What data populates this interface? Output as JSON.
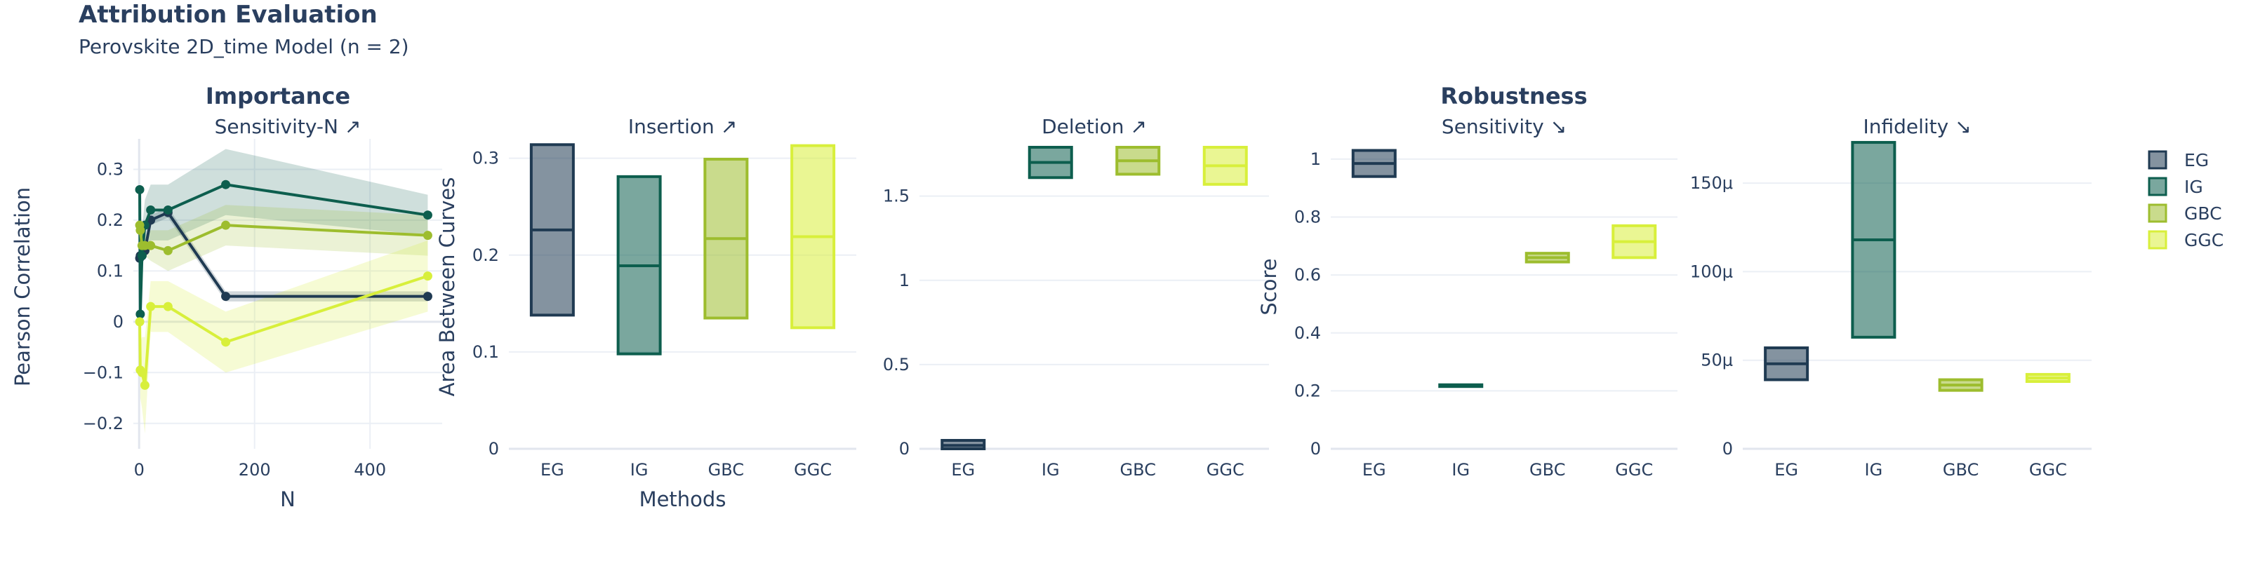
{
  "header": {
    "title": "Attribution Evaluation",
    "subtitle": "Perovskite 2D_time Model (n = 2)"
  },
  "groups": [
    {
      "title": "Importance"
    },
    {
      "title": "Robustness"
    }
  ],
  "legend": [
    "EG",
    "IG",
    "GBC",
    "GGC"
  ],
  "colors": {
    "EG": "#1f3a52",
    "IG": "#0d5e4e",
    "GBC": "#9dbd2e",
    "GGC": "#d8ef3b"
  },
  "chart_data": [
    {
      "type": "line",
      "title": "Sensitivity-N ↗",
      "xlabel": "N",
      "ylabel": "Pearson Correlation",
      "xlim": [
        -10,
        525
      ],
      "ylim": [
        -0.25,
        0.36
      ],
      "xticks": [
        0,
        200,
        400
      ],
      "xtick_labels": [
        "0",
        "200",
        "400"
      ],
      "yticks": [
        -0.2,
        -0.1,
        0,
        0.1,
        0.2,
        0.3
      ],
      "ytick_labels": [
        "−0.2",
        "−0.1",
        "0",
        "0.1",
        "0.2",
        "0.3"
      ],
      "x": [
        1,
        2,
        5,
        10,
        20,
        50,
        150,
        500
      ],
      "series": [
        {
          "name": "EG",
          "values": [
            0.125,
            0.13,
            0.13,
            0.14,
            0.2,
            0.215,
            0.05,
            0.05
          ],
          "lower": [
            0.11,
            0.12,
            0.12,
            0.13,
            0.19,
            0.205,
            0.04,
            0.04
          ],
          "upper": [
            0.14,
            0.14,
            0.14,
            0.15,
            0.21,
            0.225,
            0.06,
            0.06
          ]
        },
        {
          "name": "IG",
          "values": [
            0.26,
            0.015,
            0.13,
            0.19,
            0.22,
            0.22,
            0.27,
            0.21
          ],
          "lower": [
            0.2,
            -0.03,
            0.1,
            0.14,
            0.16,
            0.16,
            0.21,
            0.17
          ],
          "upper": [
            0.32,
            0.06,
            0.18,
            0.24,
            0.27,
            0.27,
            0.34,
            0.25
          ]
        },
        {
          "name": "GBC",
          "values": [
            0.19,
            0.18,
            0.15,
            0.15,
            0.15,
            0.14,
            0.19,
            0.17
          ],
          "lower": [
            0.16,
            0.15,
            0.12,
            0.13,
            0.12,
            0.1,
            0.15,
            0.13
          ],
          "upper": [
            0.22,
            0.21,
            0.18,
            0.17,
            0.18,
            0.18,
            0.23,
            0.21
          ]
        },
        {
          "name": "GGC",
          "values": [
            0.0,
            -0.095,
            -0.1,
            -0.125,
            0.03,
            0.03,
            -0.04,
            0.09
          ],
          "lower": [
            -0.06,
            -0.15,
            -0.17,
            -0.22,
            -0.02,
            -0.02,
            -0.1,
            0.02
          ],
          "upper": [
            0.06,
            -0.04,
            -0.03,
            -0.03,
            0.08,
            0.08,
            0.02,
            0.16
          ]
        }
      ]
    },
    {
      "type": "box",
      "title": "Insertion ↗",
      "xlabel": "Methods",
      "ylabel": "Area Between Curves",
      "ylim": [
        0,
        0.32
      ],
      "yticks": [
        0,
        0.1,
        0.2,
        0.3
      ],
      "ytick_labels": [
        "0",
        "0.1",
        "0.2",
        "0.3"
      ],
      "categories": [
        "EG",
        "IG",
        "GBC",
        "GGC"
      ],
      "boxes": [
        {
          "low": 0.138,
          "median": 0.226,
          "high": 0.314
        },
        {
          "low": 0.098,
          "median": 0.189,
          "high": 0.281
        },
        {
          "low": 0.135,
          "median": 0.217,
          "high": 0.299
        },
        {
          "low": 0.125,
          "median": 0.219,
          "high": 0.313
        }
      ]
    },
    {
      "type": "box",
      "title": "Deletion ↗",
      "xlabel": "",
      "ylabel": "",
      "ylim": [
        0,
        1.84
      ],
      "yticks": [
        0,
        0.5,
        1,
        1.5
      ],
      "ytick_labels": [
        "0",
        "0.5",
        "1",
        "1.5"
      ],
      "categories": [
        "EG",
        "IG",
        "GBC",
        "GGC"
      ],
      "boxes": [
        {
          "low": 0.0,
          "median": 0.02,
          "high": 0.05
        },
        {
          "low": 1.61,
          "median": 1.7,
          "high": 1.79
        },
        {
          "low": 1.63,
          "median": 1.71,
          "high": 1.79
        },
        {
          "low": 1.57,
          "median": 1.68,
          "high": 1.79
        }
      ]
    },
    {
      "type": "box",
      "title": "Sensitivity ↘",
      "xlabel": "",
      "ylabel": "Score",
      "ylim": [
        0,
        1.07
      ],
      "yticks": [
        0,
        0.2,
        0.4,
        0.6,
        0.8,
        1
      ],
      "ytick_labels": [
        "0",
        "0.2",
        "0.4",
        "0.6",
        "0.8",
        "1"
      ],
      "categories": [
        "EG",
        "IG",
        "GBC",
        "GGC"
      ],
      "boxes": [
        {
          "low": 0.94,
          "median": 0.985,
          "high": 1.03
        },
        {
          "low": 0.215,
          "median": 0.218,
          "high": 0.221
        },
        {
          "low": 0.645,
          "median": 0.66,
          "high": 0.675
        },
        {
          "low": 0.66,
          "median": 0.715,
          "high": 0.77
        }
      ]
    },
    {
      "type": "box",
      "title": "Infidelity ↘",
      "xlabel": "",
      "ylabel": "",
      "ylim": [
        0,
        0.000175
      ],
      "yticks": [
        0,
        5e-05,
        0.0001,
        0.00015
      ],
      "ytick_labels": [
        "0",
        "50μ",
        "100μ",
        "150μ"
      ],
      "categories": [
        "EG",
        "IG",
        "GBC",
        "GGC"
      ],
      "boxes": [
        {
          "low": 3.9e-05,
          "median": 4.8e-05,
          "high": 5.7e-05
        },
        {
          "low": 6.3e-05,
          "median": 0.000118,
          "high": 0.000173
        },
        {
          "low": 3.3e-05,
          "median": 3.6e-05,
          "high": 3.9e-05
        },
        {
          "low": 3.8e-05,
          "median": 4e-05,
          "high": 4.2e-05
        }
      ]
    }
  ]
}
